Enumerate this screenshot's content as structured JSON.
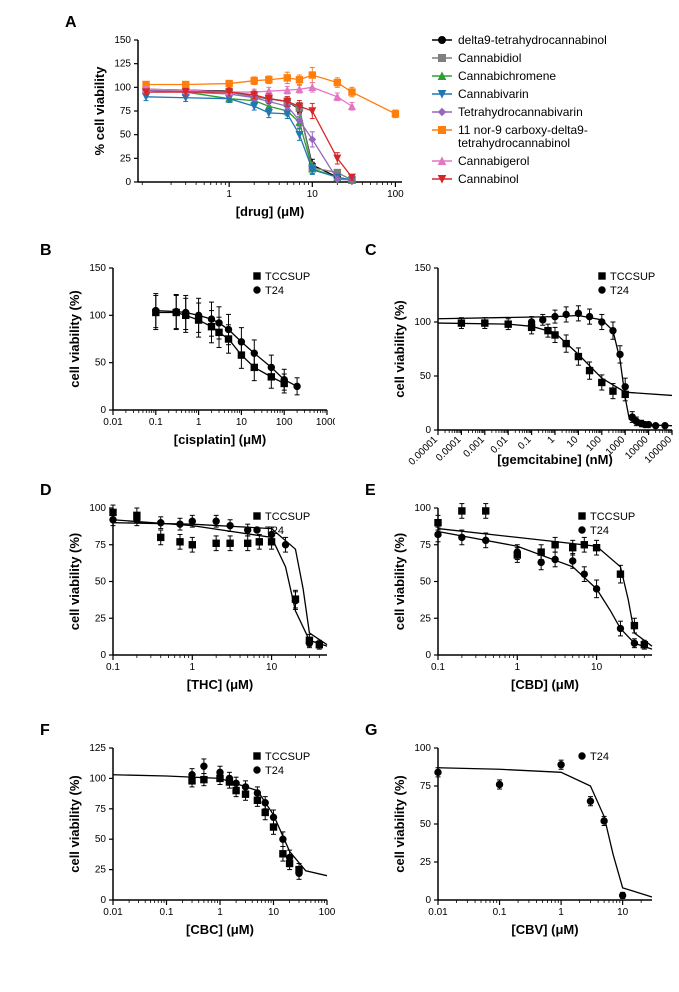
{
  "figure": {
    "background_color": "#ffffff",
    "axis_color": "#000000",
    "text_color": "#000000",
    "label_fontsize": 13,
    "tick_fontsize": 10,
    "panel_label_fontsize": 16,
    "panelA": {
      "label": "A",
      "ylabel": "% cell viability",
      "xlabel": "[drug] (μM)",
      "ylim": [
        0,
        150
      ],
      "ytick_step": 25,
      "xticks": [
        1,
        10,
        100
      ],
      "legend": [
        {
          "name": "delta9-tetrahydrocannabinol",
          "color": "#000000",
          "marker": "circle"
        },
        {
          "name": "Cannabidiol",
          "color": "#7f7f7f",
          "marker": "square"
        },
        {
          "name": "Cannabichromene",
          "color": "#2ca02c",
          "marker": "triangle-up"
        },
        {
          "name": "Cannabivarin",
          "color": "#1f77b4",
          "marker": "triangle-down"
        },
        {
          "name": "Tetrahydrocannabivarin",
          "color": "#9467bd",
          "marker": "diamond"
        },
        {
          "name": "11 nor-9 carboxy-delta9-\ntetrahydrocannabinol",
          "color": "#ff7f0e",
          "marker": "square"
        },
        {
          "name": "Cannabigerol",
          "color": "#e377c2",
          "marker": "triangle-up"
        },
        {
          "name": "Cannabinol",
          "color": "#d62728",
          "marker": "triangle-down"
        }
      ],
      "series": [
        {
          "x": [
            0.1,
            0.3,
            1,
            2,
            3,
            5,
            7,
            10,
            20,
            30
          ],
          "y": [
            98,
            97,
            96,
            90,
            88,
            85,
            77,
            18,
            5,
            2
          ],
          "err": [
            3,
            3,
            3,
            4,
            3,
            5,
            4,
            6,
            2,
            1
          ],
          "color": "#000000",
          "marker": "circle"
        },
        {
          "x": [
            0.1,
            0.3,
            1,
            2,
            3,
            5,
            7,
            10,
            20,
            30
          ],
          "y": [
            97,
            96,
            95,
            90,
            88,
            85,
            78,
            15,
            10,
            2
          ],
          "err": [
            3,
            3,
            3,
            4,
            4,
            5,
            6,
            6,
            3,
            1
          ],
          "color": "#7f7f7f",
          "marker": "square"
        },
        {
          "x": [
            0.1,
            0.3,
            1,
            2,
            3,
            5,
            7,
            10,
            20,
            30
          ],
          "y": [
            97,
            95,
            88,
            86,
            80,
            75,
            63,
            14,
            5,
            2
          ],
          "err": [
            3,
            3,
            4,
            4,
            4,
            5,
            6,
            5,
            2,
            1
          ],
          "color": "#2ca02c",
          "marker": "triangle-up"
        },
        {
          "x": [
            0.1,
            0.3,
            1,
            2,
            3,
            5,
            7,
            10,
            20,
            30
          ],
          "y": [
            90,
            89,
            88,
            80,
            73,
            72,
            50,
            13,
            5,
            2
          ],
          "err": [
            4,
            4,
            4,
            4,
            5,
            5,
            6,
            5,
            2,
            1
          ],
          "color": "#1f77b4",
          "marker": "triangle-down"
        },
        {
          "x": [
            0.1,
            0.3,
            1,
            2,
            3,
            5,
            7,
            10,
            20,
            30
          ],
          "y": [
            97,
            95,
            93,
            89,
            85,
            80,
            65,
            45,
            3,
            2
          ],
          "err": [
            3,
            3,
            3,
            3,
            4,
            4,
            6,
            8,
            2,
            1
          ],
          "color": "#9467bd",
          "marker": "diamond"
        },
        {
          "x": [
            0.1,
            0.3,
            1,
            2,
            3,
            5,
            7,
            10,
            20,
            30,
            100
          ],
          "y": [
            103,
            103,
            104,
            107,
            108,
            110,
            108,
            113,
            105,
            95,
            72
          ],
          "err": [
            3,
            3,
            3,
            4,
            4,
            6,
            5,
            8,
            5,
            5,
            4
          ],
          "color": "#ff7f0e",
          "marker": "square"
        },
        {
          "x": [
            0.1,
            0.3,
            1,
            2,
            3,
            5,
            7,
            10,
            20,
            30
          ],
          "y": [
            98,
            97,
            95,
            95,
            96,
            97,
            98,
            100,
            90,
            80
          ],
          "err": [
            3,
            3,
            3,
            3,
            4,
            4,
            4,
            5,
            4,
            4
          ],
          "color": "#e377c2",
          "marker": "triangle-up"
        },
        {
          "x": [
            0.1,
            0.3,
            1,
            2,
            3,
            5,
            7,
            10,
            20,
            30
          ],
          "y": [
            95,
            95,
            95,
            92,
            88,
            85,
            80,
            75,
            25,
            5
          ],
          "err": [
            3,
            4,
            4,
            4,
            5,
            5,
            6,
            8,
            6,
            3
          ],
          "color": "#d62728",
          "marker": "triangle-down"
        }
      ]
    },
    "panelB": {
      "label": "B",
      "ylabel": "cell viability (%)",
      "xlabel": "[cisplatin] (μM)",
      "ylim": [
        0,
        150
      ],
      "ytick_step": 50,
      "xticks": [
        0.01,
        0.1,
        1,
        10,
        100,
        1000
      ],
      "legend": [
        {
          "name": "TCCSUP",
          "marker": "square"
        },
        {
          "name": "T24",
          "marker": "circle"
        }
      ],
      "series": [
        {
          "x": [
            0.1,
            0.3,
            0.5,
            1,
            2,
            3,
            5,
            10,
            20,
            50,
            100
          ],
          "y": [
            103,
            103,
            100,
            95,
            88,
            82,
            75,
            58,
            45,
            35,
            28
          ],
          "err": [
            18,
            18,
            18,
            18,
            17,
            16,
            15,
            14,
            14,
            12,
            10
          ],
          "marker": "square"
        },
        {
          "x": [
            0.1,
            0.3,
            0.5,
            1,
            2,
            3,
            5,
            10,
            20,
            50,
            100,
            200
          ],
          "y": [
            105,
            104,
            103,
            100,
            96,
            92,
            85,
            72,
            60,
            45,
            32,
            25
          ],
          "err": [
            18,
            18,
            18,
            18,
            18,
            17,
            16,
            15,
            14,
            13,
            11,
            9
          ],
          "marker": "circle"
        }
      ]
    },
    "panelC": {
      "label": "C",
      "ylabel": "cell viability (%)",
      "xlabel": "[gemcitabine] (nM)",
      "ylim": [
        0,
        150
      ],
      "ytick_step": 50,
      "xticks": [
        1e-05,
        0.0001,
        0.001,
        0.01,
        0.1,
        1,
        10,
        100,
        1000,
        10000,
        100000
      ],
      "legend": [
        {
          "name": "TCCSUP",
          "marker": "square"
        },
        {
          "name": "T24",
          "marker": "circle"
        }
      ],
      "series": [
        {
          "x": [
            0.0001,
            0.001,
            0.01,
            0.1,
            0.5,
            1,
            3,
            10,
            30,
            100,
            300,
            1000
          ],
          "y": [
            99,
            99,
            98,
            95,
            92,
            88,
            80,
            68,
            55,
            44,
            36,
            33
          ],
          "err": [
            5,
            5,
            5,
            6,
            6,
            7,
            8,
            8,
            8,
            7,
            7,
            6
          ],
          "marker": "square"
        },
        {
          "x": [
            0.1,
            0.3,
            1,
            3,
            10,
            30,
            100,
            300,
            600,
            1000,
            2000,
            3000,
            5000,
            7000,
            10000,
            20000,
            50000
          ],
          "y": [
            100,
            102,
            105,
            107,
            108,
            105,
            100,
            92,
            70,
            40,
            12,
            8,
            6,
            5,
            5,
            4,
            4
          ],
          "err": [
            5,
            5,
            6,
            7,
            7,
            7,
            7,
            8,
            8,
            8,
            5,
            4,
            3,
            2,
            2,
            2,
            2
          ],
          "marker": "circle"
        }
      ],
      "curve_tccsup": {
        "x": [
          1e-05,
          0.01,
          0.1,
          1,
          10,
          100,
          1000,
          100000
        ],
        "y": [
          99,
          98,
          96,
          90,
          70,
          48,
          35,
          32
        ]
      },
      "curve_t24": {
        "x": [
          1e-05,
          1,
          10,
          100,
          300,
          600,
          1000,
          1500,
          3000,
          100000
        ],
        "y": [
          103,
          105,
          106,
          102,
          92,
          65,
          30,
          10,
          5,
          4
        ]
      }
    },
    "panelD": {
      "label": "D",
      "ylabel": "cell viability (%)",
      "xlabel": "[THC] (μM)",
      "ylim": [
        0,
        100
      ],
      "ytick_step": 25,
      "xticks": [
        0.1,
        1,
        10
      ],
      "legend": [
        {
          "name": "TCCSUP",
          "marker": "square"
        },
        {
          "name": "T24",
          "marker": "circle"
        }
      ],
      "series": [
        {
          "x": [
            0.1,
            0.2,
            0.4,
            0.7,
            1,
            2,
            3,
            5,
            7,
            10,
            20,
            30,
            40
          ],
          "y": [
            97,
            95,
            80,
            77,
            75,
            76,
            76,
            76,
            77,
            77,
            38,
            10,
            7
          ],
          "err": [
            5,
            5,
            5,
            5,
            5,
            5,
            5,
            5,
            5,
            5,
            6,
            4,
            3
          ],
          "marker": "square"
        },
        {
          "x": [
            0.1,
            0.2,
            0.4,
            0.7,
            1,
            2,
            3,
            5,
            10,
            15,
            20,
            30
          ],
          "y": [
            92,
            92,
            90,
            89,
            91,
            91,
            88,
            85,
            82,
            75,
            37,
            8
          ],
          "err": [
            4,
            4,
            4,
            4,
            4,
            4,
            4,
            4,
            5,
            5,
            6,
            3
          ],
          "marker": "circle"
        }
      ],
      "curve_tccsup": {
        "x": [
          0.1,
          1,
          10,
          15,
          20,
          30,
          50
        ],
        "y": [
          92,
          88,
          80,
          60,
          30,
          10,
          6
        ]
      },
      "curve_t24": {
        "x": [
          0.1,
          1,
          10,
          20,
          25,
          30,
          50
        ],
        "y": [
          90,
          89,
          86,
          72,
          45,
          15,
          7
        ]
      }
    },
    "panelE": {
      "label": "E",
      "ylabel": "cell viability (%)",
      "xlabel": "[CBD] (μM)",
      "ylim": [
        0,
        100
      ],
      "ytick_step": 25,
      "xticks": [
        0.1,
        1,
        10
      ],
      "legend": [
        {
          "name": "TCCSUP",
          "marker": "square"
        },
        {
          "name": "T24",
          "marker": "circle"
        }
      ],
      "series": [
        {
          "x": [
            0.1,
            0.2,
            0.4,
            1,
            2,
            3,
            5,
            7,
            10,
            20,
            30,
            40
          ],
          "y": [
            90,
            98,
            98,
            68,
            70,
            75,
            73,
            75,
            73,
            55,
            20,
            7
          ],
          "err": [
            5,
            5,
            5,
            5,
            5,
            5,
            5,
            5,
            5,
            6,
            5,
            3
          ],
          "marker": "square"
        },
        {
          "x": [
            0.1,
            0.2,
            0.4,
            1,
            2,
            3,
            5,
            7,
            10,
            20,
            30
          ],
          "y": [
            82,
            80,
            78,
            70,
            63,
            65,
            64,
            55,
            45,
            18,
            8
          ],
          "err": [
            5,
            5,
            5,
            5,
            5,
            5,
            5,
            5,
            6,
            5,
            3
          ],
          "marker": "circle"
        }
      ],
      "curve_tccsup": {
        "x": [
          0.1,
          1,
          10,
          20,
          25,
          30,
          50
        ],
        "y": [
          86,
          80,
          74,
          60,
          38,
          15,
          6
        ]
      },
      "curve_t24": {
        "x": [
          0.1,
          1,
          5,
          10,
          15,
          20,
          30,
          50
        ],
        "y": [
          84,
          74,
          60,
          45,
          30,
          18,
          8,
          4
        ]
      }
    },
    "panelF": {
      "label": "F",
      "ylabel": "cell viability (%)",
      "xlabel": "[CBC] (μM)",
      "ylim": [
        0,
        125
      ],
      "ytick_step": 25,
      "xticks": [
        0.01,
        0.1,
        1,
        10,
        100
      ],
      "legend": [
        {
          "name": "TCCSUP",
          "marker": "square"
        },
        {
          "name": "T24",
          "marker": "circle"
        }
      ],
      "series": [
        {
          "x": [
            0.3,
            0.5,
            1,
            1.5,
            2,
            3,
            5,
            7,
            10,
            15,
            20,
            30
          ],
          "y": [
            98,
            99,
            100,
            97,
            90,
            87,
            82,
            72,
            60,
            38,
            30,
            25
          ],
          "err": [
            5,
            5,
            5,
            5,
            5,
            5,
            5,
            6,
            6,
            6,
            5,
            5
          ],
          "marker": "square"
        },
        {
          "x": [
            0.3,
            0.5,
            1,
            1.5,
            2,
            3,
            5,
            7,
            10,
            15,
            20,
            30
          ],
          "y": [
            103,
            110,
            105,
            100,
            96,
            93,
            88,
            80,
            68,
            50,
            35,
            22
          ],
          "err": [
            5,
            6,
            5,
            5,
            5,
            5,
            5,
            5,
            6,
            6,
            6,
            5
          ],
          "marker": "circle"
        }
      ],
      "curve": {
        "x": [
          0.01,
          0.1,
          1,
          5,
          10,
          20,
          40,
          100
        ],
        "y": [
          103,
          102,
          100,
          90,
          70,
          40,
          24,
          20
        ]
      }
    },
    "panelG": {
      "label": "G",
      "ylabel": "cell viability (%)",
      "xlabel": "[CBV] (μM)",
      "ylim": [
        0,
        100
      ],
      "ytick_step": 25,
      "xticks": [
        0.01,
        0.1,
        1,
        10
      ],
      "legend": [
        {
          "name": "T24",
          "marker": "circle"
        }
      ],
      "series": [
        {
          "x": [
            0.01,
            0.1,
            1,
            3,
            5,
            10
          ],
          "y": [
            84,
            76,
            89,
            65,
            52,
            3
          ],
          "err": [
            3,
            3,
            3,
            3,
            3,
            2
          ],
          "marker": "circle"
        }
      ],
      "curve": {
        "x": [
          0.01,
          0.1,
          1,
          3,
          5,
          7,
          10,
          30
        ],
        "y": [
          87,
          86,
          84,
          75,
          55,
          30,
          8,
          2
        ]
      }
    }
  }
}
